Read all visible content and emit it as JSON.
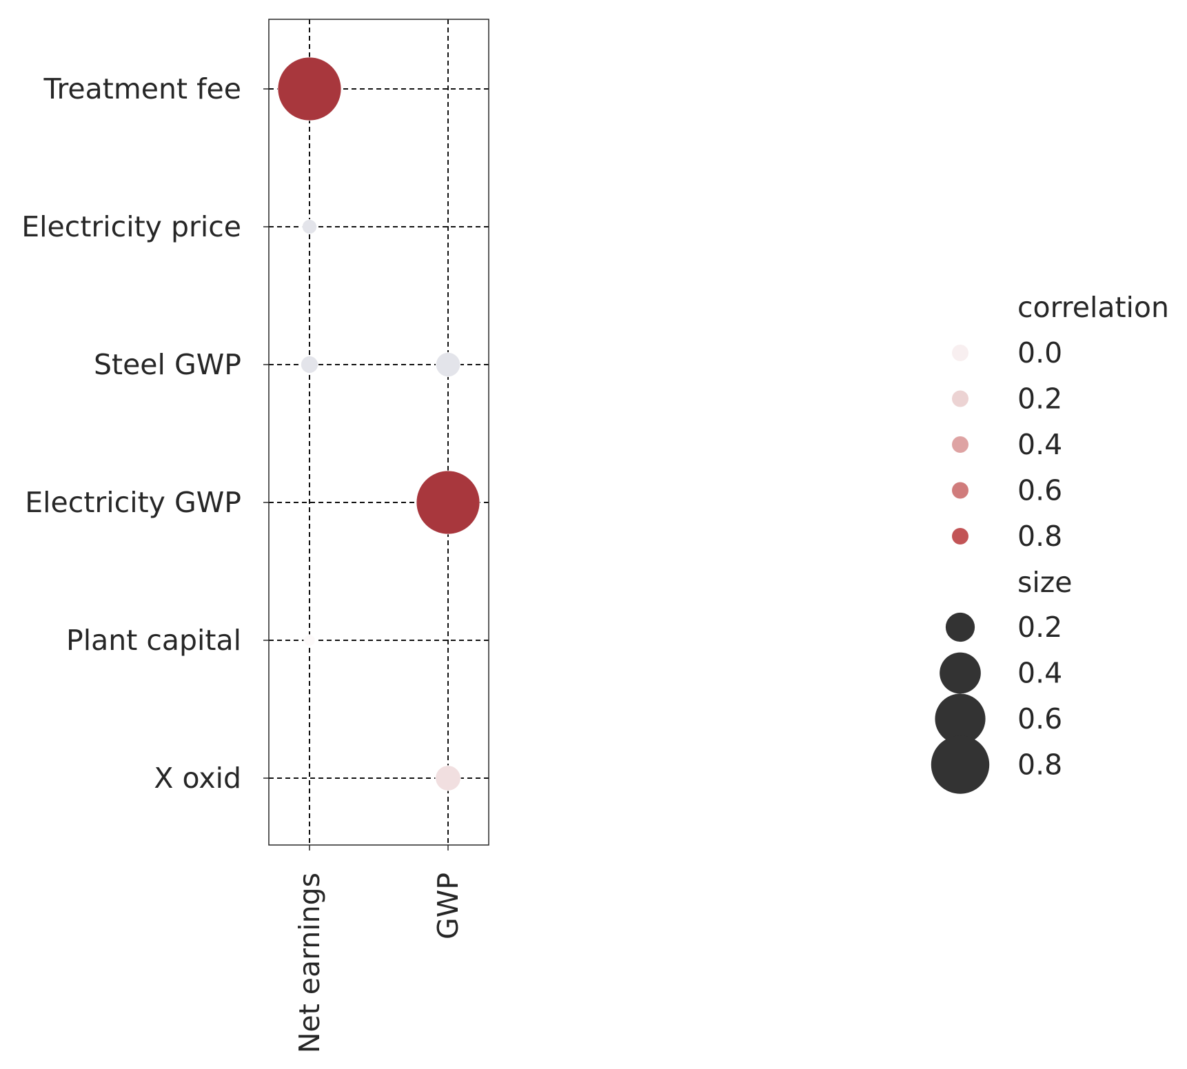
{
  "chart_data": {
    "type": "scatter",
    "x_categories": [
      "Net earnings",
      "GWP"
    ],
    "y_categories": [
      "Treatment fee",
      "Electricity price",
      "Steel GWP",
      "Electricity GWP",
      "Plant capital",
      "X oxid"
    ],
    "points": [
      {
        "x": "Net earnings",
        "y": "Treatment fee",
        "correlation": 0.95,
        "size": 0.95
      },
      {
        "x": "Net earnings",
        "y": "Electricity price",
        "correlation": -0.05,
        "size": 0.05
      },
      {
        "x": "Net earnings",
        "y": "Steel GWP",
        "correlation": -0.07,
        "size": 0.07
      },
      {
        "x": "GWP",
        "y": "Steel GWP",
        "correlation": -0.14,
        "size": 0.14
      },
      {
        "x": "GWP",
        "y": "Electricity GWP",
        "correlation": 0.95,
        "size": 0.95
      },
      {
        "x": "Net earnings",
        "y": "Plant capital",
        "correlation": 0.03,
        "size": 0.03
      },
      {
        "x": "GWP",
        "y": "X oxid",
        "correlation": 0.15,
        "size": 0.15
      }
    ],
    "grid": true,
    "grid_style": "dashed",
    "legend_position": "right",
    "legend": {
      "hue_title": "correlation",
      "hue_entries": [
        {
          "label": "0.0",
          "color": "#f8eff0"
        },
        {
          "label": "0.2",
          "color": "#ecd3d3"
        },
        {
          "label": "0.4",
          "color": "#dea3a3"
        },
        {
          "label": "0.6",
          "color": "#d07c7c"
        },
        {
          "label": "0.8",
          "color": "#c25456"
        }
      ],
      "size_title": "size",
      "size_entries": [
        {
          "label": "0.2",
          "value": 0.2
        },
        {
          "label": "0.4",
          "value": 0.4
        },
        {
          "label": "0.6",
          "value": 0.6
        },
        {
          "label": "0.8",
          "value": 0.8
        }
      ]
    },
    "colors": {
      "strong_positive": "#a8373d",
      "negative": "#e3e4ea",
      "size_marker": "#333333",
      "axis": "#262626"
    }
  }
}
